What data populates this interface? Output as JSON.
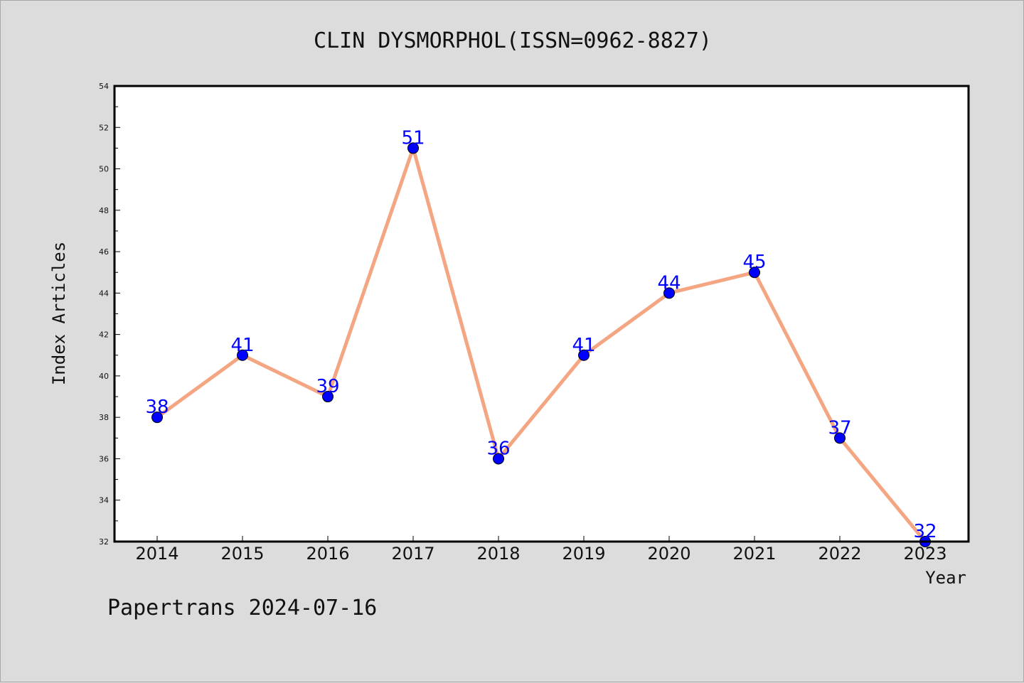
{
  "chart_data": {
    "type": "line",
    "title": "CLIN DYSMORPHOL(ISSN=0962-8827)",
    "xlabel": "Year",
    "ylabel": "Index Articles",
    "categories": [
      "2014",
      "2015",
      "2016",
      "2017",
      "2018",
      "2019",
      "2020",
      "2021",
      "2022",
      "2023"
    ],
    "series": [
      {
        "values": [
          38,
          41,
          39,
          51,
          36,
          41,
          44,
          45,
          37,
          32
        ]
      }
    ],
    "ylim": [
      32,
      54
    ],
    "yticks": [
      32,
      34,
      36,
      38,
      40,
      42,
      44,
      46,
      48,
      50,
      52,
      54
    ],
    "grid": false,
    "legend": "none",
    "colors": {
      "background": "#dcdcdc",
      "plot_background": "#ffffff",
      "line": "#f4a582",
      "marker": "#0000ff",
      "data_label": "#0000ff"
    }
  },
  "footer": {
    "text": "Papertrans 2024-07-16"
  }
}
